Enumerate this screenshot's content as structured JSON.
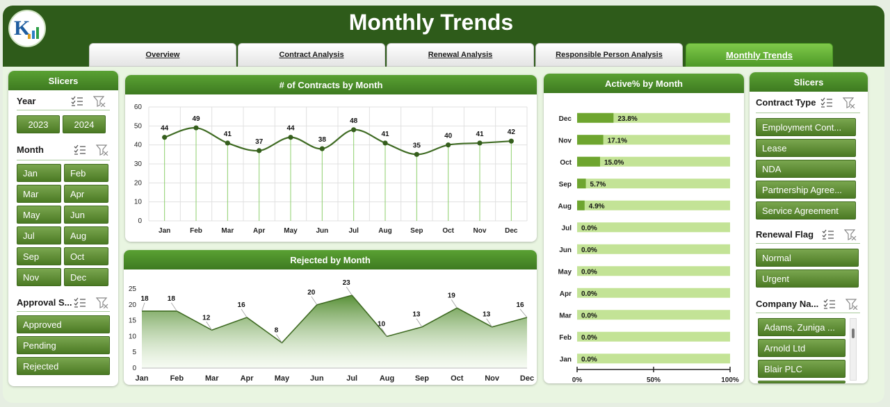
{
  "header": {
    "title": "Monthly Trends",
    "tabs": [
      {
        "label": "Overview",
        "active": false
      },
      {
        "label": "Contract Analysis",
        "active": false
      },
      {
        "label": "Renewal Analysis",
        "active": false
      },
      {
        "label": "Responsible Person Analysis",
        "active": false
      },
      {
        "label": "Monthly Trends",
        "active": true
      }
    ]
  },
  "left_slicers": {
    "title": "Slicers",
    "year": {
      "label": "Year",
      "items": [
        "2023",
        "2024"
      ]
    },
    "month": {
      "label": "Month",
      "items": [
        "Jan",
        "Feb",
        "Mar",
        "Apr",
        "May",
        "Jun",
        "Jul",
        "Aug",
        "Sep",
        "Oct",
        "Nov",
        "Dec"
      ]
    },
    "approval": {
      "label": "Approval S...",
      "items": [
        "Approved",
        "Pending",
        "Rejected"
      ]
    }
  },
  "right_slicers": {
    "title": "Slicers",
    "contract_type": {
      "label": "Contract Type",
      "items": [
        "Employment Cont...",
        "Lease",
        "NDA",
        "Partnership Agree...",
        "Service Agreement"
      ]
    },
    "renewal_flag": {
      "label": "Renewal Flag",
      "items": [
        "Normal",
        "Urgent"
      ]
    },
    "company": {
      "label": "Company Na...",
      "items": [
        "Adams, Zuniga ...",
        "Arnold Ltd",
        "Blair PLC"
      ]
    }
  },
  "colors": {
    "accent": "#3e7a20",
    "line": "#3f6b23",
    "light_bar": "#c3e396",
    "bar": "#6ea52f"
  },
  "chart_data": [
    {
      "type": "line",
      "title": "# of Contracts by Month",
      "categories": [
        "Jan",
        "Feb",
        "Mar",
        "Apr",
        "May",
        "Jun",
        "Jul",
        "Aug",
        "Sep",
        "Oct",
        "Nov",
        "Dec"
      ],
      "values": [
        44,
        49,
        41,
        37,
        44,
        38,
        48,
        41,
        35,
        40,
        41,
        42
      ],
      "yticks": [
        "0",
        "10",
        "20",
        "30",
        "40",
        "50",
        "60"
      ],
      "ylim": [
        0,
        60
      ],
      "grid": true
    },
    {
      "type": "area",
      "title": "Rejected by Month",
      "categories": [
        "Jan",
        "Feb",
        "Mar",
        "Apr",
        "May",
        "Jun",
        "Jul",
        "Aug",
        "Sep",
        "Oct",
        "Nov",
        "Dec"
      ],
      "values": [
        18,
        18,
        12,
        16,
        8,
        20,
        23,
        10,
        13,
        19,
        13,
        16
      ],
      "yticks": [
        "0",
        "5",
        "10",
        "15",
        "20",
        "25"
      ],
      "ylim": [
        0,
        25
      ]
    },
    {
      "type": "bar",
      "title": "Active% by Month",
      "categories": [
        "Dec",
        "Nov",
        "Oct",
        "Sep",
        "Aug",
        "Jul",
        "Jun",
        "May",
        "Apr",
        "Mar",
        "Feb",
        "Jan"
      ],
      "values": [
        23.8,
        17.1,
        15.0,
        5.7,
        4.9,
        0.0,
        0.0,
        0.0,
        0.0,
        0.0,
        0.0,
        0.0
      ],
      "labels": [
        "23.8%",
        "17.1%",
        "15.0%",
        "5.7%",
        "4.9%",
        "0.0%",
        "0.0%",
        "0.0%",
        "0.0%",
        "0.0%",
        "0.0%",
        "0.0%"
      ],
      "xticks": [
        "0%",
        "50%",
        "100%"
      ],
      "xlim": [
        0,
        100
      ]
    }
  ]
}
